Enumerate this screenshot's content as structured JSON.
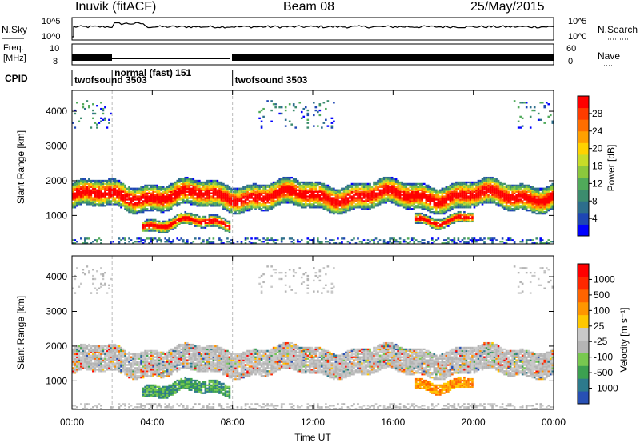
{
  "header": {
    "station": "Inuvik (fitACF)",
    "beam": "Beam 08",
    "date": "25/May/2015"
  },
  "top_panels": {
    "nsky_label": "N.Sky",
    "nsky_ticks": [
      "10^5",
      "10^0"
    ],
    "nsearch_label": "N.Search",
    "nsearch_ticks": [
      "10^5",
      "10^0"
    ],
    "freq_label_line1": "Freq.",
    "freq_label_line2": "[MHz]",
    "freq_ticks": [
      "10",
      "8"
    ],
    "nave_label": "Nave",
    "nave_ticks": [
      "60",
      "0"
    ],
    "cpid_label": "CPID",
    "cpid_segments": [
      {
        "name": "twofsound",
        "id": "3503",
        "start_hour": 0,
        "end_hour": 2
      },
      {
        "name": "normal (fast)",
        "id": "151",
        "start_hour": 2,
        "end_hour": 8
      },
      {
        "name": "twofsound",
        "id": "3503",
        "start_hour": 8,
        "end_hour": 24
      }
    ]
  },
  "chart_data": [
    {
      "type": "heatmap",
      "name": "power",
      "ylabel": "Slant Range [km]",
      "y_ticks": [
        1000,
        2000,
        3000,
        4000
      ],
      "ylim": [
        180,
        4600
      ],
      "xlim": [
        0,
        24
      ],
      "colorbar_label": "Power [dB]",
      "colorbar_ticks": [
        "28",
        "24",
        "20",
        "16",
        "12",
        "8",
        "4"
      ],
      "colorbar_colors": [
        "#0000ff",
        "#1e46b4",
        "#2d6e8c",
        "#3c8c6e",
        "#50aa5a",
        "#8cc83c",
        "#c8dc28",
        "#ffd200",
        "#ffa000",
        "#ff6e00",
        "#ff3c00",
        "#ff0000"
      ],
      "bands": [
        {
          "start_hour": 0,
          "end_hour": 24,
          "center_km": 1550,
          "width_km": 750
        },
        {
          "start_hour": 3.5,
          "end_hour": 7.8,
          "center_km": 750,
          "width_km": 350
        },
        {
          "start_hour": 17,
          "end_hour": 20,
          "center_km": 900,
          "width_km": 300
        }
      ]
    },
    {
      "type": "heatmap",
      "name": "velocity",
      "xlabel": "Time UT",
      "ylabel": "Slant Range [km]",
      "x_tick_labels": [
        "00:00",
        "04:00",
        "08:00",
        "12:00",
        "16:00",
        "20:00",
        "00:00"
      ],
      "x_ticks_hours": [
        0,
        4,
        8,
        12,
        16,
        20,
        24
      ],
      "y_ticks": [
        1000,
        2000,
        3000,
        4000
      ],
      "ylim": [
        180,
        4600
      ],
      "xlim": [
        0,
        24
      ],
      "colorbar_label": "Velocity [m s⁻¹]",
      "colorbar_ticks": [
        "1000",
        "500",
        "100",
        "25",
        "-25",
        "-100",
        "-500",
        "-1000"
      ],
      "colorbar_colors": [
        "#2850b4",
        "#2d7a8c",
        "#3ca050",
        "#78c850",
        "#b4b4b4",
        "#c8c8c8",
        "#ffc800",
        "#ff9600",
        "#ff6400",
        "#ff2800",
        "#ff0000"
      ]
    }
  ]
}
